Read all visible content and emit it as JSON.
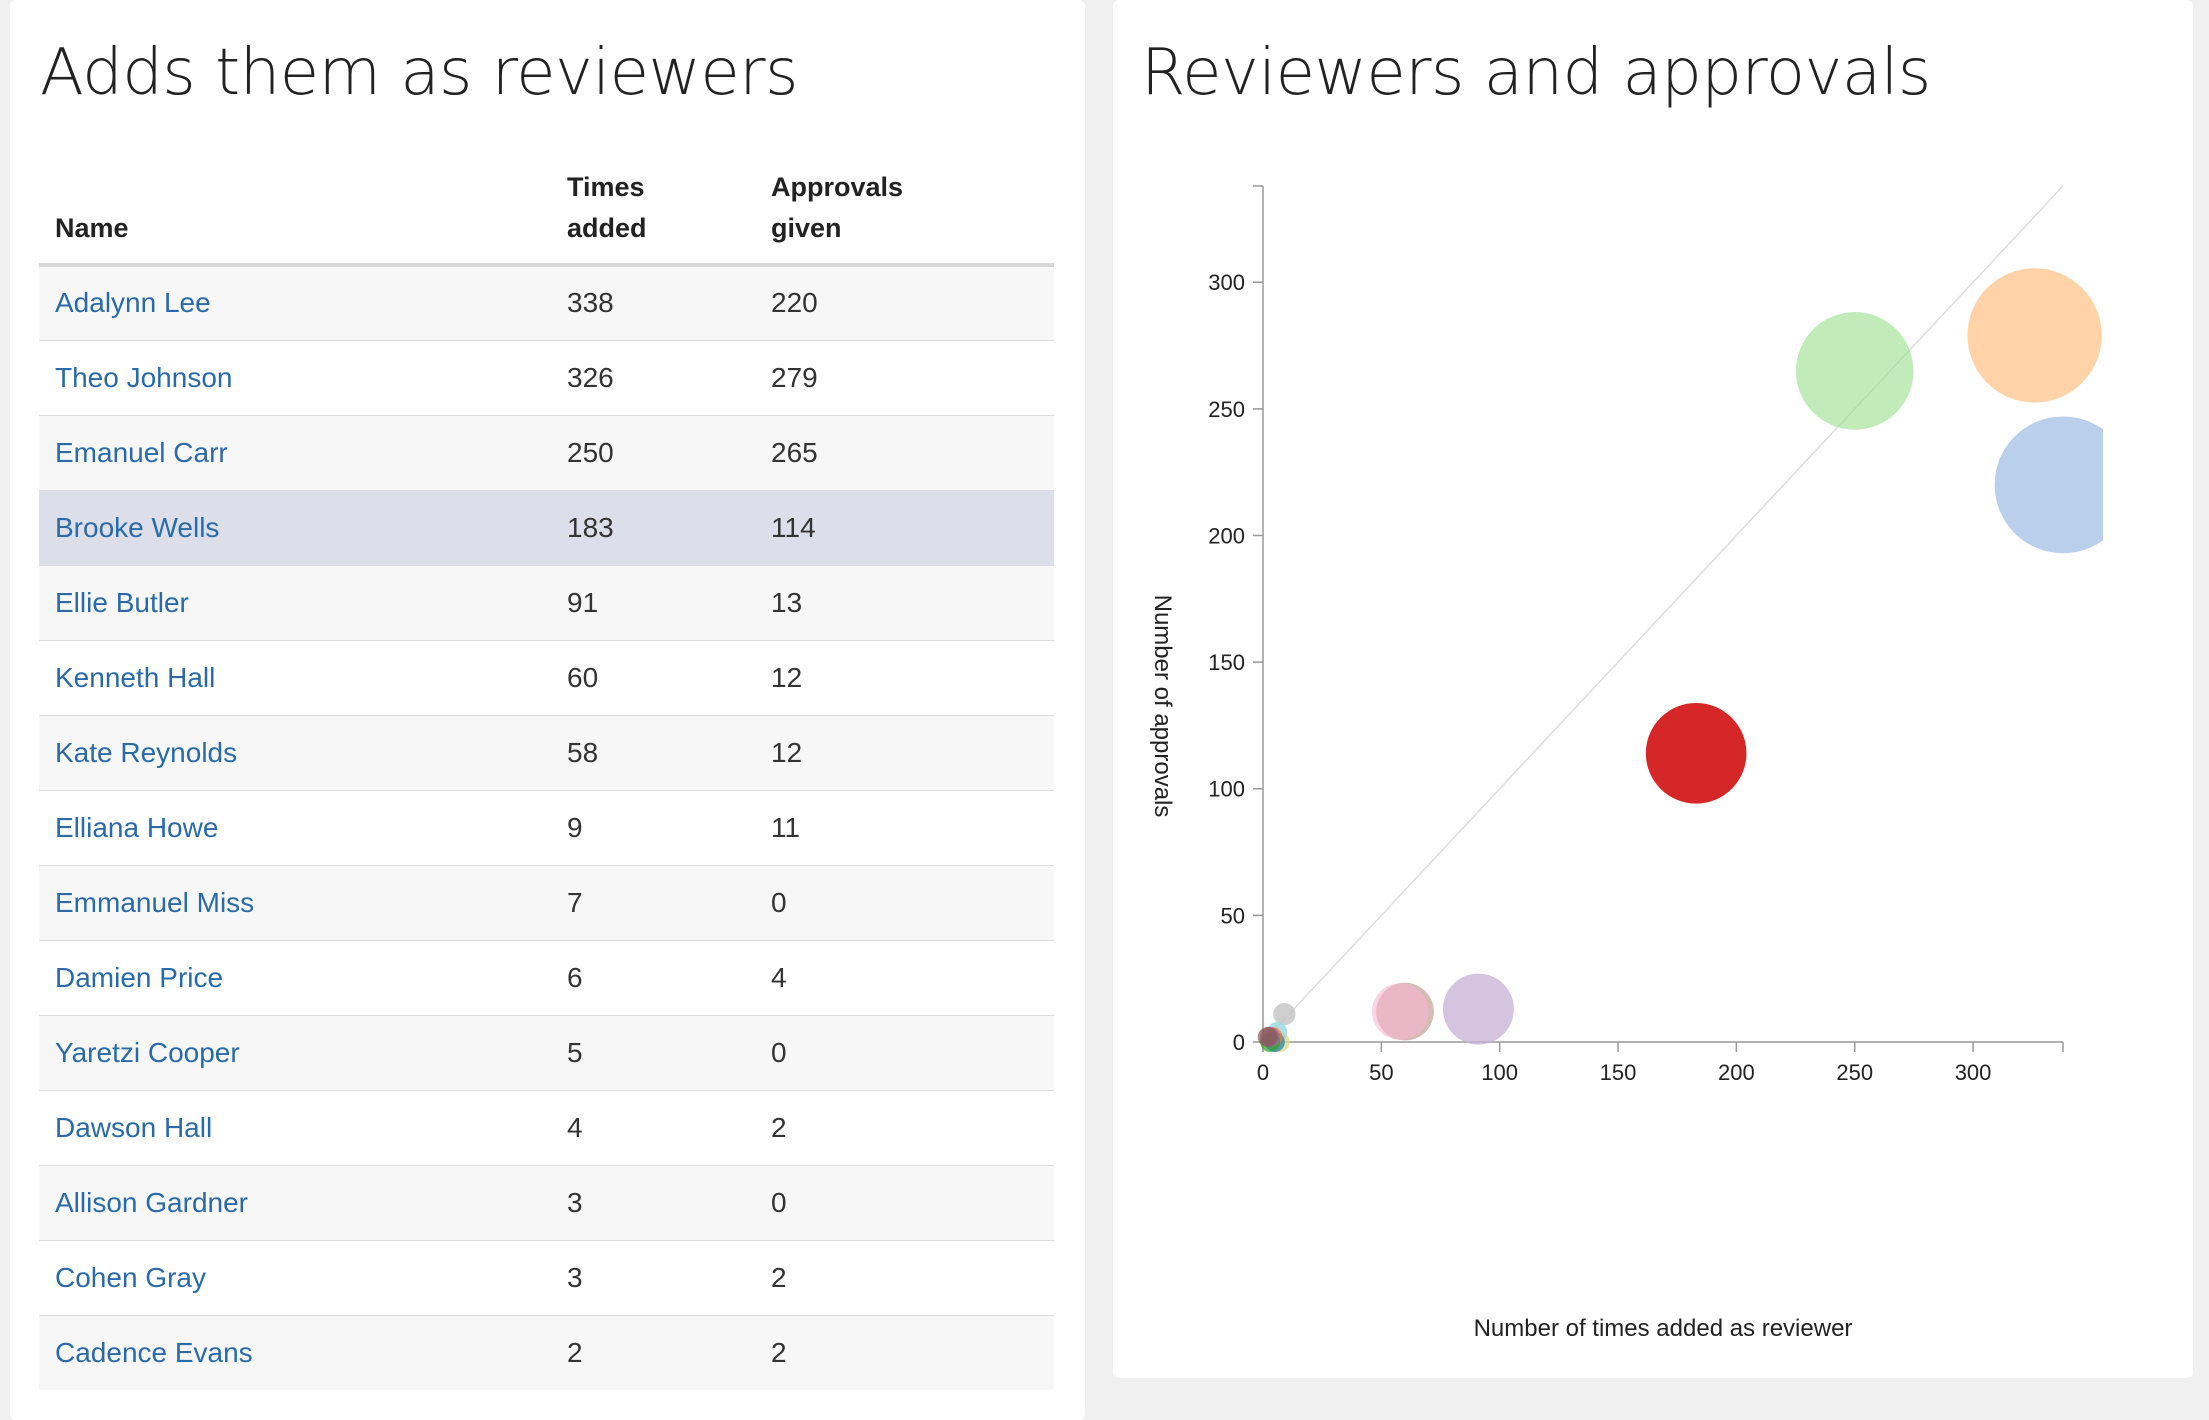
{
  "left_panel": {
    "title": "Adds them as reviewers",
    "table": {
      "headers": {
        "name": "Name",
        "times_line1": "Times",
        "times_line2": "added",
        "approvals_line1": "Approvals",
        "approvals_line2": "given"
      },
      "highlighted_row": "Brooke Wells",
      "rows": [
        {
          "name": "Adalynn Lee",
          "times_added": 338,
          "approvals_given": 220
        },
        {
          "name": "Theo Johnson",
          "times_added": 326,
          "approvals_given": 279
        },
        {
          "name": "Emanuel Carr",
          "times_added": 250,
          "approvals_given": 265
        },
        {
          "name": "Brooke Wells",
          "times_added": 183,
          "approvals_given": 114
        },
        {
          "name": "Ellie Butler",
          "times_added": 91,
          "approvals_given": 13
        },
        {
          "name": "Kenneth Hall",
          "times_added": 60,
          "approvals_given": 12
        },
        {
          "name": "Kate Reynolds",
          "times_added": 58,
          "approvals_given": 12
        },
        {
          "name": "Elliana Howe",
          "times_added": 9,
          "approvals_given": 11
        },
        {
          "name": "Emmanuel Miss",
          "times_added": 7,
          "approvals_given": 0
        },
        {
          "name": "Damien Price",
          "times_added": 6,
          "approvals_given": 4
        },
        {
          "name": "Yaretzi Cooper",
          "times_added": 5,
          "approvals_given": 0
        },
        {
          "name": "Dawson Hall",
          "times_added": 4,
          "approvals_given": 2
        },
        {
          "name": "Allison Gardner",
          "times_added": 3,
          "approvals_given": 0
        },
        {
          "name": "Cohen Gray",
          "times_added": 3,
          "approvals_given": 2
        },
        {
          "name": "Cadence Evans",
          "times_added": 2,
          "approvals_given": 2
        }
      ]
    }
  },
  "right_panel": {
    "title": "Reviewers and approvals"
  },
  "chart_data": {
    "type": "scatter",
    "title": "Reviewers and approvals",
    "xlabel": "Number of times added as reviewer",
    "ylabel": "Number of approvals",
    "xlim": [
      0,
      338
    ],
    "ylim": [
      0,
      338
    ],
    "x_ticks": [
      0,
      50,
      100,
      150,
      200,
      250,
      300
    ],
    "y_ticks": [
      0,
      50,
      100,
      150,
      200,
      250,
      300
    ],
    "reference_line": "y = x",
    "grid": false,
    "bubble_size_encodes": "times added",
    "points": [
      {
        "name": "Adalynn Lee",
        "x": 338,
        "y": 220,
        "color": "#aec7e8",
        "opacity": 0.85
      },
      {
        "name": "Theo Johnson",
        "x": 326,
        "y": 279,
        "color": "#ffbb78",
        "opacity": 0.65
      },
      {
        "name": "Emanuel Carr",
        "x": 250,
        "y": 265,
        "color": "#98df8a",
        "opacity": 0.6
      },
      {
        "name": "Brooke Wells",
        "x": 183,
        "y": 114,
        "color": "#d62728",
        "opacity": 1.0
      },
      {
        "name": "Ellie Butler",
        "x": 91,
        "y": 13,
        "color": "#c5b0d5",
        "opacity": 0.75
      },
      {
        "name": "Kenneth Hall",
        "x": 60,
        "y": 12,
        "color": "#c49c94",
        "opacity": 0.7
      },
      {
        "name": "Kate Reynolds",
        "x": 58,
        "y": 12,
        "color": "#f7b6d2",
        "opacity": 0.6
      },
      {
        "name": "Elliana Howe",
        "x": 9,
        "y": 11,
        "color": "#c7c7c7",
        "opacity": 0.85
      },
      {
        "name": "Emmanuel Miss",
        "x": 7,
        "y": 0,
        "color": "#dbdb8d",
        "opacity": 0.8
      },
      {
        "name": "Damien Price",
        "x": 6,
        "y": 4,
        "color": "#9edae5",
        "opacity": 0.85
      },
      {
        "name": "Yaretzi Cooper",
        "x": 5,
        "y": 0,
        "color": "#1f77b4",
        "opacity": 0.7
      },
      {
        "name": "Dawson Hall",
        "x": 4,
        "y": 2,
        "color": "#ff7f0e",
        "opacity": 0.7
      },
      {
        "name": "Allison Gardner",
        "x": 3,
        "y": 0,
        "color": "#2ca02c",
        "opacity": 0.7
      },
      {
        "name": "Cohen Gray",
        "x": 3,
        "y": 2,
        "color": "#9467bd",
        "opacity": 0.7
      },
      {
        "name": "Cadence Evans",
        "x": 2,
        "y": 2,
        "color": "#8c564b",
        "opacity": 0.7
      }
    ]
  }
}
